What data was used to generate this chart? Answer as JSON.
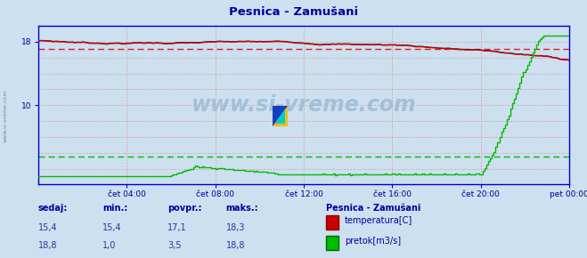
{
  "title": "Pesnica - Zamušani",
  "background_color": "#cce0f0",
  "plot_bg_color": "#cce0f0",
  "fig_bg_color": "#cce0f0",
  "temp_avg": 17.1,
  "temp_min": 15.4,
  "temp_max": 18.3,
  "temp_sedaj": 15.4,
  "flow_avg": 3.5,
  "flow_min": 1.0,
  "flow_max": 18.8,
  "flow_sedaj": 18.8,
  "temp_color": "#cc0000",
  "flow_color": "#00bb00",
  "avg_temp_color": "#dd2222",
  "avg_flow_color": "#00bb00",
  "border_color": "#0000cc",
  "grid_color": "#dd9999",
  "title_color": "#000099",
  "label_color": "#000099",
  "watermark": "www.si-vreme.com",
  "xtick_labels": [
    "čet 04:00",
    "čet 08:00",
    "čet 12:00",
    "čet 16:00",
    "čet 20:00",
    "pet 00:00"
  ],
  "xtick_positions": [
    48,
    96,
    144,
    192,
    240,
    288
  ],
  "sidebar_text": "www.si-vreme.com",
  "legend_title": "Pesnica - Zamušani",
  "legend_items": [
    "temperatura[C]",
    "pretok[m3/s]"
  ],
  "table_headers": [
    "sedaj:",
    "min.:",
    "povpr.:",
    "maks.:"
  ],
  "table_row1": [
    "15,4",
    "15,4",
    "17,1",
    "18,3"
  ],
  "table_row2": [
    "18,8",
    "1,0",
    "3,5",
    "18,8"
  ],
  "ylim": [
    0,
    20
  ],
  "yaxis_ticks": [
    10,
    18
  ]
}
